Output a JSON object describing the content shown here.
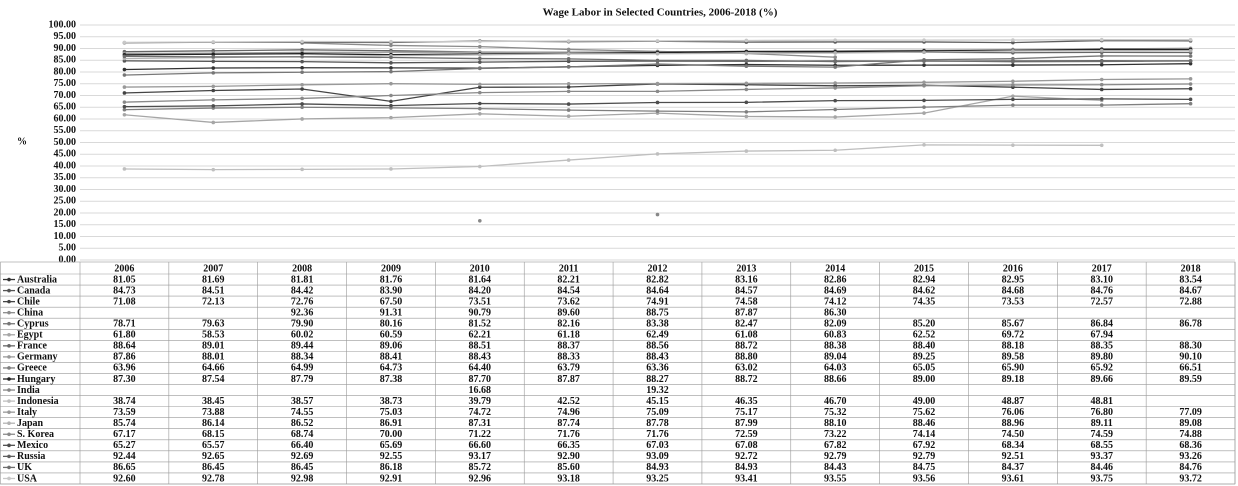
{
  "chart_data": {
    "type": "line",
    "title": "Wage Labor in Selected Countries, 2006-2018 (%)",
    "y_label": "%",
    "categories": [
      "2006",
      "2007",
      "2008",
      "2009",
      "2010",
      "2011",
      "2012",
      "2013",
      "2014",
      "2015",
      "2016",
      "2017",
      "2018"
    ],
    "ylim": [
      0,
      100
    ],
    "yticks": [
      {
        "value": 0,
        "label": "0.00"
      },
      {
        "value": 5,
        "label": "5.00"
      },
      {
        "value": 10,
        "label": "10.00"
      },
      {
        "value": 15,
        "label": "15.00"
      },
      {
        "value": 20,
        "label": "20.00"
      },
      {
        "value": 25,
        "label": "25.00"
      },
      {
        "value": 30,
        "label": "30.00"
      },
      {
        "value": 35,
        "label": "35.00"
      },
      {
        "value": 40,
        "label": "40.00"
      },
      {
        "value": 45,
        "label": "45.00"
      },
      {
        "value": 50,
        "label": "50.00"
      },
      {
        "value": 55,
        "label": "55.00"
      },
      {
        "value": 60,
        "label": "60.00"
      },
      {
        "value": 65,
        "label": "65.00"
      },
      {
        "value": 70,
        "label": "70.00"
      },
      {
        "value": 75,
        "label": "75.00"
      },
      {
        "value": 80,
        "label": "80.00"
      },
      {
        "value": 85,
        "label": "85.00"
      },
      {
        "value": 90,
        "label": "90.00"
      },
      {
        "value": 95,
        "label": "95.00"
      },
      {
        "value": 100,
        "label": "100.00"
      }
    ],
    "grid": true,
    "series": [
      {
        "name": "Australia",
        "color": "#333333",
        "values": [
          81.05,
          81.69,
          81.81,
          81.76,
          81.64,
          82.21,
          82.82,
          83.16,
          82.86,
          82.94,
          82.95,
          83.1,
          83.54
        ],
        "value_labels": [
          "81.05",
          "81.69",
          "81.81",
          "81.76",
          "81.64",
          "82.21",
          "82.82",
          "83.16",
          "82.86",
          "82.94",
          "82.95",
          "83.10",
          "83.54"
        ]
      },
      {
        "name": "Canada",
        "color": "#555555",
        "values": [
          84.73,
          84.51,
          84.42,
          83.9,
          84.2,
          84.54,
          84.64,
          84.57,
          84.69,
          84.62,
          84.68,
          84.76,
          84.67
        ],
        "value_labels": [
          "84.73",
          "84.51",
          "84.42",
          "83.90",
          "84.20",
          "84.54",
          "84.64",
          "84.57",
          "84.69",
          "84.62",
          "84.68",
          "84.76",
          "84.67"
        ]
      },
      {
        "name": "Chile",
        "color": "#444444",
        "values": [
          71.08,
          72.13,
          72.76,
          67.5,
          73.51,
          73.62,
          74.91,
          74.58,
          74.12,
          74.35,
          73.53,
          72.57,
          72.88
        ],
        "value_labels": [
          "71.08",
          "72.13",
          "72.76",
          "67.50",
          "73.51",
          "73.62",
          "74.91",
          "74.58",
          "74.12",
          "74.35",
          "73.53",
          "72.57",
          "72.88"
        ]
      },
      {
        "name": "China",
        "color": "#8c8c8c",
        "values": [
          null,
          null,
          92.36,
          91.31,
          90.79,
          89.6,
          88.75,
          87.87,
          86.3,
          null,
          null,
          null,
          null
        ],
        "value_labels": [
          null,
          null,
          "92.36",
          "91.31",
          "90.79",
          "89.60",
          "88.75",
          "87.87",
          "86.30",
          null,
          null,
          null,
          null
        ]
      },
      {
        "name": "Cyprus",
        "color": "#777777",
        "values": [
          78.71,
          79.63,
          79.9,
          80.16,
          81.52,
          82.16,
          83.38,
          82.47,
          82.09,
          85.2,
          85.67,
          86.84,
          86.78
        ],
        "value_labels": [
          "78.71",
          "79.63",
          "79.90",
          "80.16",
          "81.52",
          "82.16",
          "83.38",
          "82.47",
          "82.09",
          "85.20",
          "85.67",
          "86.84",
          "86.78"
        ]
      },
      {
        "name": "Egypt",
        "color": "#a6a6a6",
        "values": [
          61.8,
          58.53,
          60.02,
          60.59,
          62.21,
          61.18,
          62.49,
          61.08,
          60.83,
          62.52,
          69.72,
          67.94,
          null
        ],
        "value_labels": [
          "61.80",
          "58.53",
          "60.02",
          "60.59",
          "62.21",
          "61.18",
          "62.49",
          "61.08",
          "60.83",
          "62.52",
          "69.72",
          "67.94",
          null
        ]
      },
      {
        "name": "France",
        "color": "#666666",
        "values": [
          88.64,
          89.01,
          89.44,
          89.06,
          88.51,
          88.37,
          88.56,
          88.72,
          88.38,
          88.4,
          88.18,
          88.35,
          88.3
        ],
        "value_labels": [
          "88.64",
          "89.01",
          "89.44",
          "89.06",
          "88.51",
          "88.37",
          "88.56",
          "88.72",
          "88.38",
          "88.40",
          "88.18",
          "88.35",
          "88.30"
        ]
      },
      {
        "name": "Germany",
        "color": "#999999",
        "values": [
          87.86,
          88.01,
          88.34,
          88.41,
          88.43,
          88.33,
          88.43,
          88.8,
          89.04,
          89.25,
          89.58,
          89.8,
          90.1
        ],
        "value_labels": [
          "87.86",
          "88.01",
          "88.34",
          "88.41",
          "88.43",
          "88.33",
          "88.43",
          "88.80",
          "89.04",
          "89.25",
          "89.58",
          "89.80",
          "90.10"
        ]
      },
      {
        "name": "Greece",
        "color": "#7f7f7f",
        "values": [
          63.96,
          64.66,
          64.99,
          64.73,
          64.4,
          63.79,
          63.36,
          63.02,
          64.03,
          65.05,
          65.9,
          65.92,
          66.51
        ],
        "value_labels": [
          "63.96",
          "64.66",
          "64.99",
          "64.73",
          "64.40",
          "63.79",
          "63.36",
          "63.02",
          "64.03",
          "65.05",
          "65.90",
          "65.92",
          "66.51"
        ]
      },
      {
        "name": "Hungary",
        "color": "#222222",
        "values": [
          87.3,
          87.54,
          87.79,
          87.38,
          87.7,
          87.87,
          88.27,
          88.72,
          88.66,
          89.0,
          89.18,
          89.66,
          89.59
        ],
        "value_labels": [
          "87.30",
          "87.54",
          "87.79",
          "87.38",
          "87.70",
          "87.87",
          "88.27",
          "88.72",
          "88.66",
          "89.00",
          "89.18",
          "89.66",
          "89.59"
        ]
      },
      {
        "name": "India",
        "color": "#888888",
        "values": [
          null,
          null,
          null,
          null,
          16.68,
          null,
          19.32,
          null,
          null,
          null,
          null,
          null,
          null
        ],
        "value_labels": [
          null,
          null,
          null,
          null,
          "16.68",
          null,
          "19.32",
          null,
          null,
          null,
          null,
          null,
          null
        ]
      },
      {
        "name": "Indonesia",
        "color": "#bfbfbf",
        "values": [
          38.74,
          38.45,
          38.57,
          38.73,
          39.79,
          42.52,
          45.15,
          46.35,
          46.7,
          49.0,
          48.87,
          48.81,
          null
        ],
        "value_labels": [
          "38.74",
          "38.45",
          "38.57",
          "38.73",
          "39.79",
          "42.52",
          "45.15",
          "46.35",
          "46.70",
          "49.00",
          "48.87",
          "48.81",
          null
        ]
      },
      {
        "name": "Italy",
        "color": "#999999",
        "values": [
          73.59,
          73.88,
          74.55,
          75.03,
          74.72,
          74.96,
          75.09,
          75.17,
          75.32,
          75.62,
          76.06,
          76.8,
          77.09
        ],
        "value_labels": [
          "73.59",
          "73.88",
          "74.55",
          "75.03",
          "74.72",
          "74.96",
          "75.09",
          "75.17",
          "75.32",
          "75.62",
          "76.06",
          "76.80",
          "77.09"
        ]
      },
      {
        "name": "Japan",
        "color": "#b3b3b3",
        "values": [
          85.74,
          86.14,
          86.52,
          86.91,
          87.31,
          87.74,
          87.78,
          87.99,
          88.1,
          88.46,
          88.96,
          89.11,
          89.08
        ],
        "value_labels": [
          "85.74",
          "86.14",
          "86.52",
          "86.91",
          "87.31",
          "87.74",
          "87.78",
          "87.99",
          "88.10",
          "88.46",
          "88.96",
          "89.11",
          "89.08"
        ]
      },
      {
        "name": "S. Korea",
        "color": "#8a8a8a",
        "values": [
          67.17,
          68.15,
          68.74,
          70.0,
          71.22,
          71.76,
          71.76,
          72.59,
          73.22,
          74.14,
          74.5,
          74.59,
          74.88
        ],
        "value_labels": [
          "67.17",
          "68.15",
          "68.74",
          "70.00",
          "71.22",
          "71.76",
          "71.76",
          "72.59",
          "73.22",
          "74.14",
          "74.50",
          "74.59",
          "74.88"
        ]
      },
      {
        "name": "Mexico",
        "color": "#4d4d4d",
        "values": [
          65.27,
          65.57,
          66.4,
          65.69,
          66.6,
          66.35,
          67.03,
          67.08,
          67.82,
          67.92,
          68.34,
          68.55,
          68.36
        ],
        "value_labels": [
          "65.27",
          "65.57",
          "66.40",
          "65.69",
          "66.60",
          "66.35",
          "67.03",
          "67.08",
          "67.82",
          "67.92",
          "68.34",
          "68.55",
          "68.36"
        ]
      },
      {
        "name": "Russia",
        "color": "#5e5e5e",
        "values": [
          92.44,
          92.65,
          92.69,
          92.55,
          93.17,
          92.9,
          93.09,
          92.72,
          92.79,
          92.79,
          92.51,
          93.37,
          93.26
        ],
        "value_labels": [
          "92.44",
          "92.65",
          "92.69",
          "92.55",
          "93.17",
          "92.90",
          "93.09",
          "92.72",
          "92.79",
          "92.79",
          "92.51",
          "93.37",
          "93.26"
        ]
      },
      {
        "name": "UK",
        "color": "#6e6e6e",
        "values": [
          86.65,
          86.45,
          86.45,
          86.18,
          85.72,
          85.6,
          84.93,
          84.93,
          84.43,
          84.75,
          84.37,
          84.46,
          84.76
        ],
        "value_labels": [
          "86.65",
          "86.45",
          "86.45",
          "86.18",
          "85.72",
          "85.60",
          "84.93",
          "84.93",
          "84.43",
          "84.75",
          "84.37",
          "84.46",
          "84.76"
        ]
      },
      {
        "name": "USA",
        "color": "#c8c8c8",
        "values": [
          92.6,
          92.78,
          92.98,
          92.91,
          92.96,
          93.18,
          93.25,
          93.41,
          93.55,
          93.56,
          93.61,
          93.75,
          93.72
        ],
        "value_labels": [
          "92.60",
          "92.78",
          "92.98",
          "92.91",
          "92.96",
          "93.18",
          "93.25",
          "93.41",
          "93.55",
          "93.56",
          "93.61",
          "93.75",
          "93.72"
        ]
      }
    ]
  }
}
